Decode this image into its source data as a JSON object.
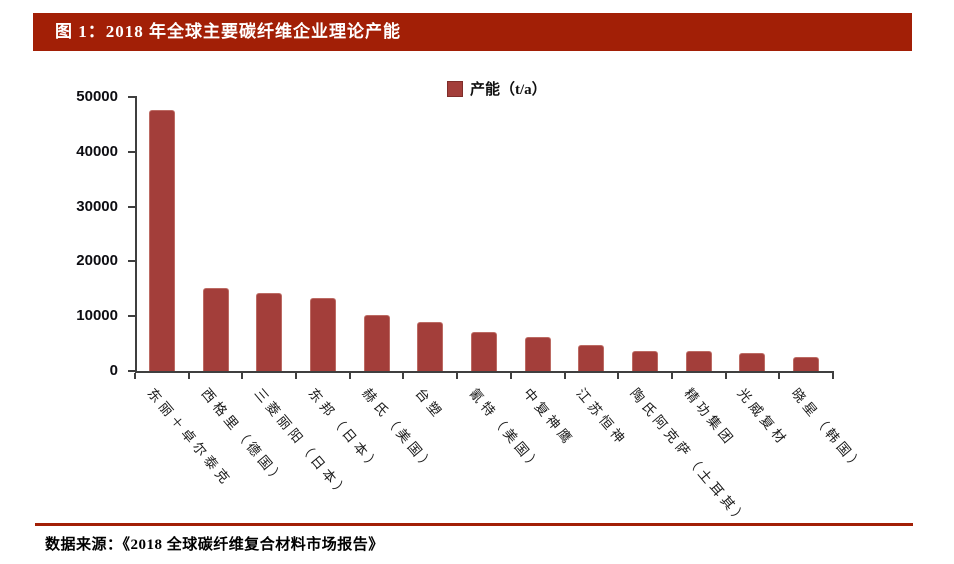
{
  "figure": {
    "title": "图 1：2018 年全球主要碳纤维企业理论产能",
    "source": "数据来源：《2018 全球碳纤维复合材料市场报告》"
  },
  "colors": {
    "banner_red": "#a21f06",
    "bar_fill": "#a33e3a",
    "bar_edge": "#bc6a63",
    "axis": "#3f3f3f"
  },
  "chart_data": {
    "type": "bar",
    "title": "",
    "legend": [
      {
        "label": "产能（t/a）",
        "color": "#a33e3a"
      }
    ],
    "legend_position": "top-center",
    "categories": [
      "东丽＋卓尔泰克",
      "西格里（德国）",
      "三菱丽阳（日本）",
      "东邦（日本）",
      "赫氏（美国）",
      "台塑",
      "氰特（美国）",
      "中复神鹰",
      "江苏恒神",
      "陶氏阿克萨（土耳其）",
      "精功集团",
      "光威复材",
      "晓星（韩国）"
    ],
    "values": [
      47600,
      15200,
      14200,
      13400,
      10200,
      9000,
      7200,
      6200,
      4800,
      3700,
      3600,
      3300,
      2600
    ],
    "xlabel": "",
    "ylabel": "",
    "ylim": [
      0,
      50000
    ],
    "ytick_step": 10000,
    "ytick_labels": [
      "0",
      "10000",
      "20000",
      "30000",
      "40000",
      "50000"
    ],
    "grid": false,
    "x_label_rotation_deg": 50
  }
}
